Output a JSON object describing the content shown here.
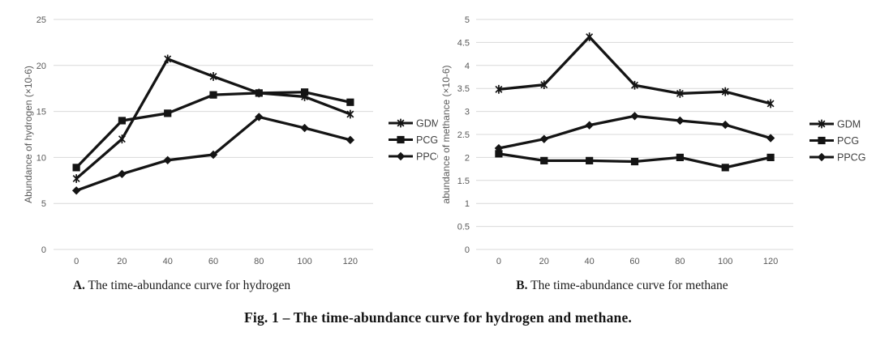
{
  "colors": {
    "line": "#141414",
    "grid": "#d9d9d9",
    "tick_text": "#595959",
    "axis_title_text": "#595959",
    "legend_text": "#3f3f3f",
    "background": "#ffffff"
  },
  "captions": {
    "a_prefix": "A.",
    "a_text": " The time-abundance curve for hydrogen",
    "b_prefix": "B.",
    "b_text": " The time-abundance curve for methane",
    "fig": "Fig. 1 – The time-abundance curve for hydrogen and methane."
  },
  "chart_data": [
    {
      "id": "hydrogen",
      "type": "line",
      "title": "",
      "xlabel": "",
      "ylabel": "Abundance of hydrogen (×10-6)",
      "categories": [
        0,
        20,
        40,
        60,
        80,
        100,
        120
      ],
      "ylim": [
        0,
        25
      ],
      "ytick_step": 5,
      "grid": true,
      "legend_position": "right",
      "legend": [
        "GDM",
        "PCG",
        "PPCG"
      ],
      "series": [
        {
          "name": "GDM",
          "marker": "star",
          "values": [
            7.7,
            12.0,
            20.7,
            18.8,
            17.0,
            16.6,
            14.7
          ]
        },
        {
          "name": "PCG",
          "marker": "square",
          "values": [
            8.9,
            14.0,
            14.8,
            16.8,
            17.0,
            17.1,
            16.0
          ]
        },
        {
          "name": "PPCG",
          "marker": "diamond",
          "values": [
            6.4,
            8.2,
            9.7,
            10.3,
            14.4,
            13.2,
            11.9
          ]
        }
      ]
    },
    {
      "id": "methane",
      "type": "line",
      "title": "",
      "xlabel": "",
      "ylabel": "abundance of methance (×10-6)",
      "categories": [
        0,
        20,
        40,
        60,
        80,
        100,
        120
      ],
      "ylim": [
        0,
        5
      ],
      "ytick_step": 0.5,
      "grid": true,
      "legend_position": "right",
      "legend": [
        "GDM",
        "PCG",
        "PPCG"
      ],
      "series": [
        {
          "name": "GDM",
          "marker": "star",
          "values": [
            3.48,
            3.58,
            4.62,
            3.57,
            3.39,
            3.43,
            3.17
          ]
        },
        {
          "name": "PCG",
          "marker": "square",
          "values": [
            2.08,
            1.93,
            1.93,
            1.91,
            2.0,
            1.78,
            2.0
          ]
        },
        {
          "name": "PPCG",
          "marker": "diamond",
          "values": [
            2.2,
            2.4,
            2.7,
            2.9,
            2.8,
            2.71,
            2.42
          ]
        }
      ]
    }
  ]
}
